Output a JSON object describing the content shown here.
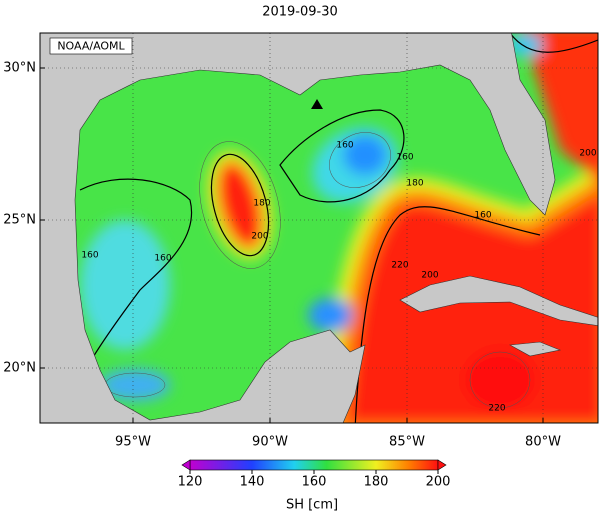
{
  "title": "2019-09-30",
  "credit": "NOAA/AOML",
  "map": {
    "lat_labels": [
      "30°N",
      "25°N",
      "20°N"
    ],
    "lon_labels": [
      "95°W",
      "90°W",
      "85°W",
      "80°W"
    ],
    "contour_labels": [
      160,
      160,
      180,
      200,
      180,
      160,
      160,
      160,
      220,
      200,
      220,
      200
    ]
  },
  "colorbar": {
    "label": "SH [cm]",
    "lim": [
      120,
      200
    ],
    "ticks": [
      120,
      140,
      160,
      180,
      200
    ]
  }
}
